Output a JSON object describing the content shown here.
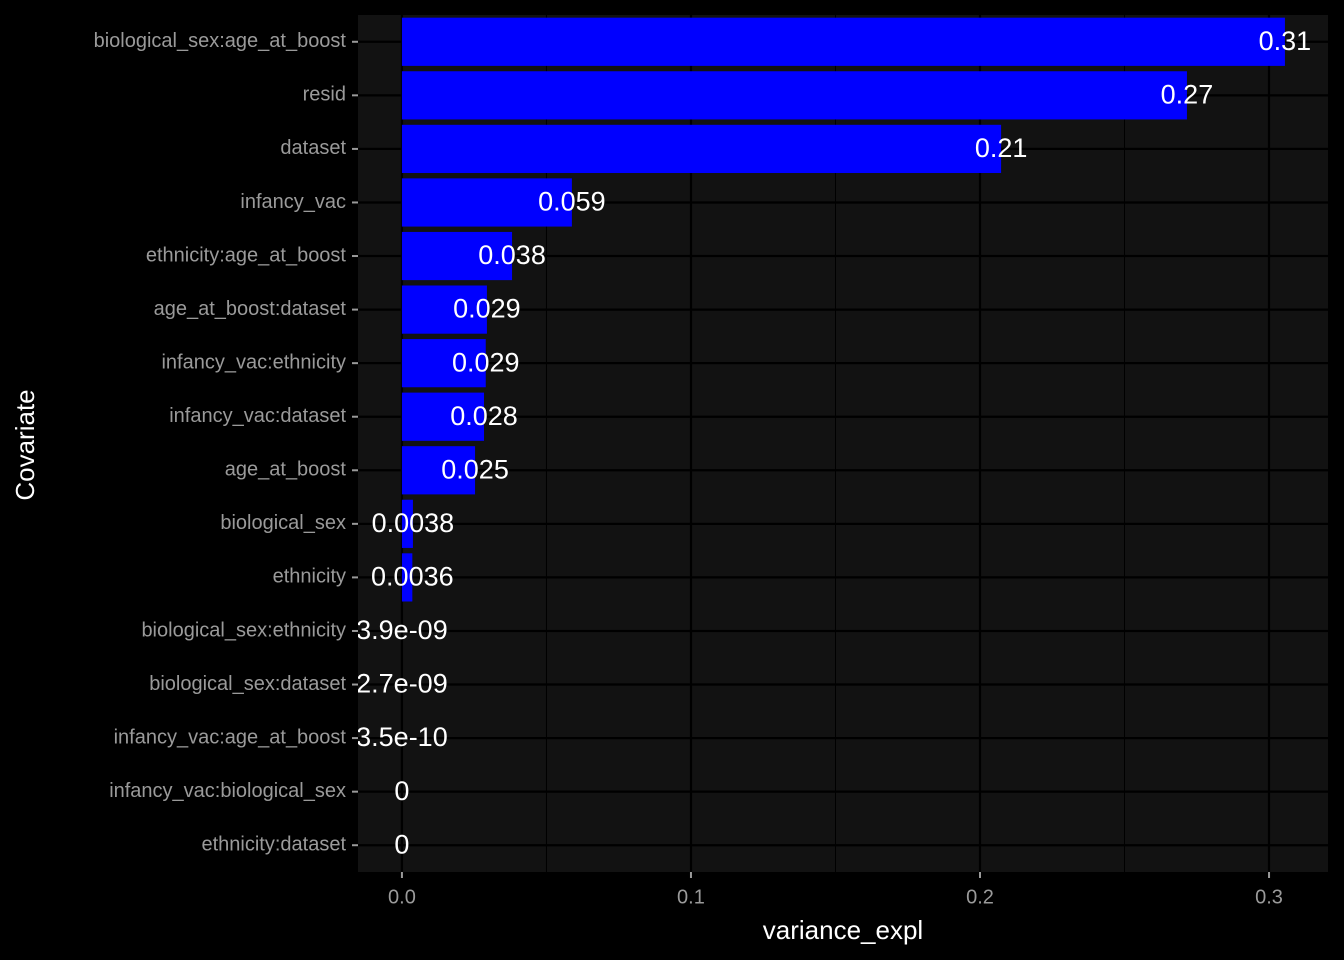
{
  "chart_data": {
    "type": "bar",
    "orientation": "horizontal",
    "x_label": "variance_expl",
    "y_label": "Covariate",
    "categories": [
      "biological_sex:age_at_boost",
      "resid",
      "dataset",
      "infancy_vac",
      "ethnicity:age_at_boost",
      "age_at_boost:dataset",
      "infancy_vac:ethnicity",
      "infancy_vac:dataset",
      "age_at_boost",
      "biological_sex",
      "ethnicity",
      "biological_sex:ethnicity",
      "biological_sex:dataset",
      "infancy_vac:age_at_boost",
      "infancy_vac:biological_sex",
      "ethnicity:dataset"
    ],
    "values": [
      0.3055,
      0.2716,
      0.2073,
      0.0588,
      0.0381,
      0.0294,
      0.029,
      0.0284,
      0.0253,
      0.0038,
      0.0036,
      3.9e-09,
      2.7e-09,
      3.5e-10,
      0,
      0
    ],
    "value_labels": [
      "0.31",
      "0.27",
      "0.21",
      "0.059",
      "0.038",
      "0.029",
      "0.029",
      "0.028",
      "0.025",
      "0.0038",
      "0.0036",
      "3.9e-09",
      "2.7e-09",
      "3.5e-10",
      "0",
      "0"
    ],
    "color": "#0000ff",
    "xlim": [
      -0.0152,
      0.3204
    ],
    "xticks": [
      {
        "value": 0,
        "label": "0.0"
      },
      0.1,
      0.2,
      0.3
    ],
    "grid": true
  }
}
